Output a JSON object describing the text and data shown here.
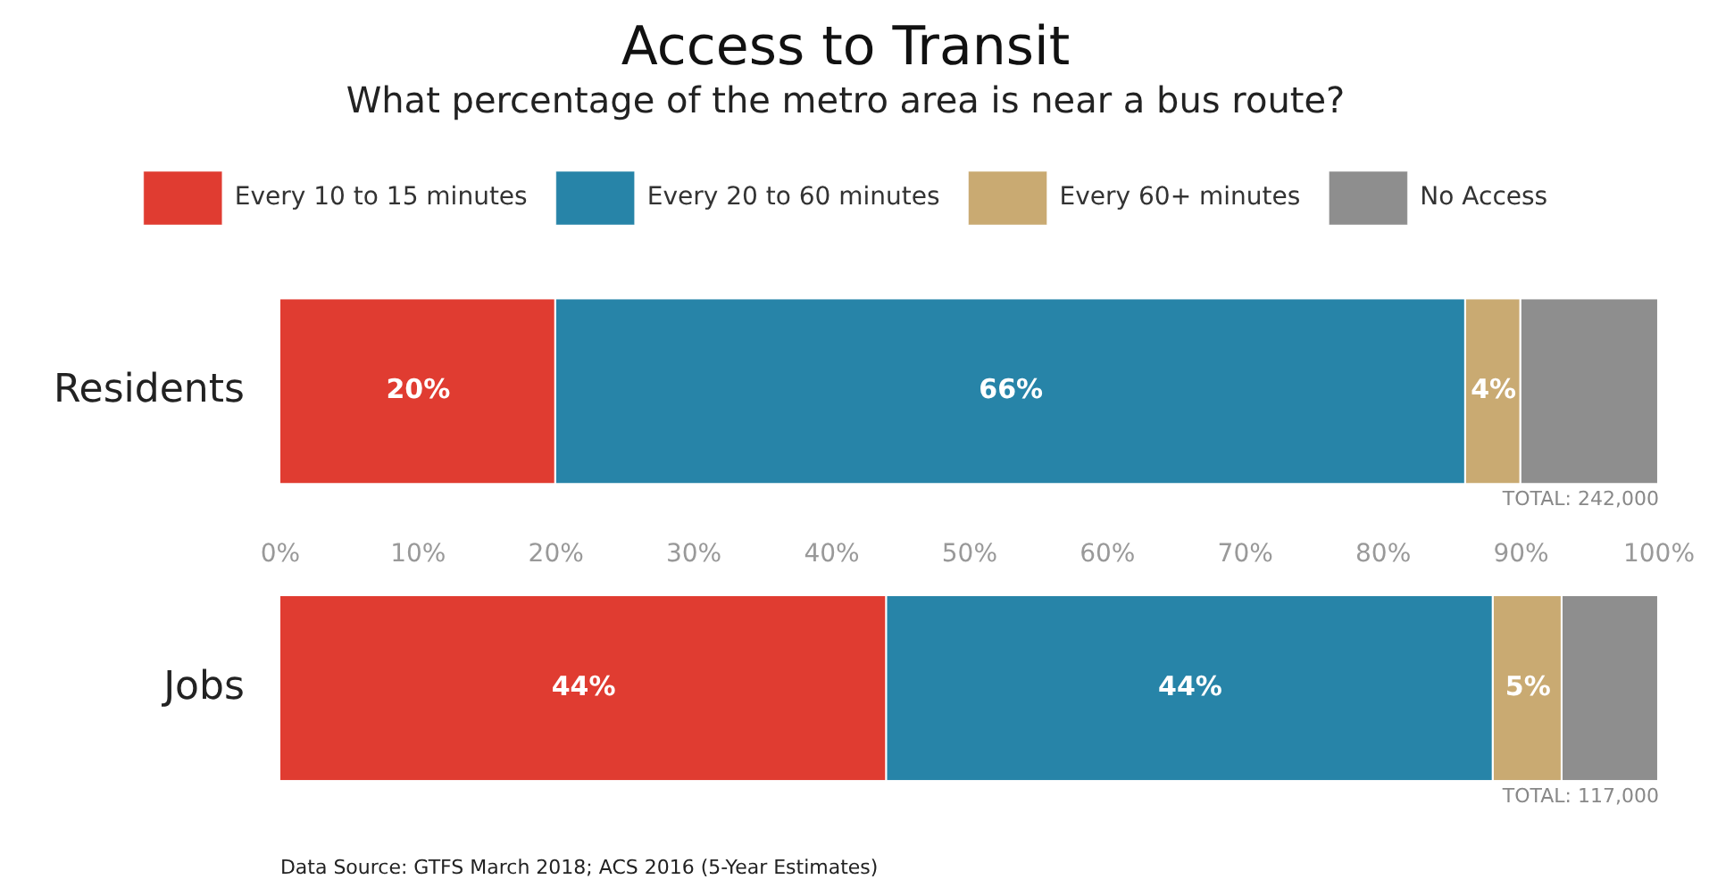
{
  "chart_data": {
    "type": "bar",
    "orientation": "horizontal",
    "stacked": true,
    "title": "Access to Transit",
    "subtitle": "What percentage of the metro area is near a bus route?",
    "categories": [
      "Residents",
      "Jobs"
    ],
    "series": [
      {
        "name": "Every 10 to 15 minutes",
        "color": "#e03c31",
        "values": [
          20,
          44
        ],
        "value_labels": [
          "20%",
          "44%"
        ]
      },
      {
        "name": "Every 20 to 60 minutes",
        "color": "#2784a8",
        "values": [
          66,
          44
        ],
        "value_labels": [
          "66%",
          "44%"
        ]
      },
      {
        "name": "Every 60+ minutes",
        "color": "#c9aa72",
        "values": [
          4,
          5
        ],
        "value_labels": [
          "4%",
          "5%"
        ]
      },
      {
        "name": "No Access",
        "color": "#8e8e8e",
        "values": [
          10,
          7
        ],
        "value_labels": [
          null,
          null
        ]
      }
    ],
    "xlim": [
      0,
      100
    ],
    "xticks": [
      {
        "value": 0,
        "label": "0%"
      },
      {
        "value": 10,
        "label": "10%"
      },
      {
        "value": 20,
        "label": "20%"
      },
      {
        "value": 30,
        "label": "30%"
      },
      {
        "value": 40,
        "label": "40%"
      },
      {
        "value": 50,
        "label": "50%"
      },
      {
        "value": 60,
        "label": "60%"
      },
      {
        "value": 70,
        "label": "70%"
      },
      {
        "value": 80,
        "label": "80%"
      },
      {
        "value": 90,
        "label": "90%"
      },
      {
        "value": 100,
        "label": "100%"
      }
    ],
    "grid": false,
    "legend": "top",
    "annotations": [
      "TOTAL: 242,000",
      "TOTAL: 117,000",
      "Data Source: GTFS March 2018; ACS 2016 (5-Year Estimates)"
    ]
  }
}
